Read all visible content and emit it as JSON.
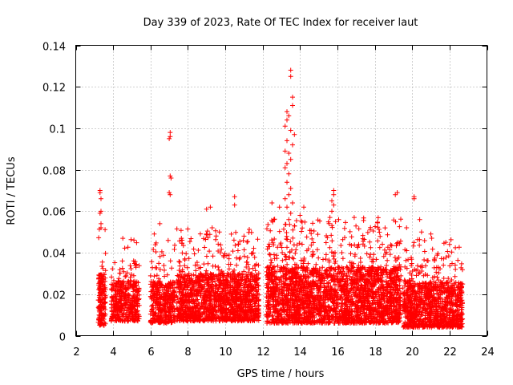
{
  "chart_data": {
    "type": "scatter",
    "title": "Day 339 of 2023, Rate Of TEC Index for receiver laut",
    "xlabel": "GPS time / hours",
    "ylabel": "ROTI / TECUs",
    "xlim": [
      2,
      24
    ],
    "ylim": [
      0,
      0.14
    ],
    "x_ticks": [
      2,
      4,
      6,
      8,
      10,
      12,
      14,
      16,
      18,
      20,
      22,
      24
    ],
    "x_tick_labels": [
      "2",
      "4",
      "6",
      "8",
      "10",
      "12",
      "14",
      "16",
      "18",
      "20",
      "22",
      "24"
    ],
    "y_ticks": [
      0,
      0.02,
      0.04,
      0.06,
      0.08,
      0.1,
      0.12,
      0.14
    ],
    "y_tick_labels": [
      "0",
      "0.02",
      "0.04",
      "0.06",
      "0.08",
      "0.1",
      "0.12",
      "0.14"
    ],
    "grid": true,
    "marker": "+",
    "series_color": "#ff0000",
    "clusters": [
      {
        "x_range": [
          3.2,
          3.6
        ],
        "base": [
          0.005,
          0.04
        ],
        "n": 160
      },
      {
        "x_range": [
          3.9,
          5.4
        ],
        "base": [
          0.007,
          0.035
        ],
        "n": 420
      },
      {
        "x_range": [
          6.0,
          7.3
        ],
        "base": [
          0.006,
          0.035
        ],
        "n": 380
      },
      {
        "x_range": [
          7.4,
          11.8
        ],
        "base": [
          0.007,
          0.04
        ],
        "n": 1500
      },
      {
        "x_range": [
          12.2,
          19.4
        ],
        "base": [
          0.006,
          0.045
        ],
        "n": 2600
      },
      {
        "x_range": [
          19.5,
          22.7
        ],
        "base": [
          0.004,
          0.035
        ],
        "n": 1100
      }
    ],
    "spikes": [
      {
        "x": 3.3,
        "y": 0.07
      },
      {
        "x": 3.3,
        "y": 0.069
      },
      {
        "x": 3.35,
        "y": 0.066
      },
      {
        "x": 3.35,
        "y": 0.06
      },
      {
        "x": 3.3,
        "y": 0.059
      },
      {
        "x": 3.35,
        "y": 0.054
      },
      {
        "x": 3.35,
        "y": 0.052
      },
      {
        "x": 7.05,
        "y": 0.098
      },
      {
        "x": 7.05,
        "y": 0.096
      },
      {
        "x": 7.0,
        "y": 0.095
      },
      {
        "x": 7.05,
        "y": 0.077
      },
      {
        "x": 7.1,
        "y": 0.076
      },
      {
        "x": 7.0,
        "y": 0.069
      },
      {
        "x": 7.05,
        "y": 0.068
      },
      {
        "x": 9.2,
        "y": 0.062
      },
      {
        "x": 9.0,
        "y": 0.061
      },
      {
        "x": 10.5,
        "y": 0.067
      },
      {
        "x": 10.5,
        "y": 0.063
      },
      {
        "x": 13.5,
        "y": 0.128
      },
      {
        "x": 13.5,
        "y": 0.125
      },
      {
        "x": 13.6,
        "y": 0.115
      },
      {
        "x": 13.6,
        "y": 0.111
      },
      {
        "x": 13.3,
        "y": 0.108
      },
      {
        "x": 13.4,
        "y": 0.106
      },
      {
        "x": 13.3,
        "y": 0.104
      },
      {
        "x": 13.2,
        "y": 0.101
      },
      {
        "x": 13.5,
        "y": 0.099
      },
      {
        "x": 13.7,
        "y": 0.097
      },
      {
        "x": 13.3,
        "y": 0.094
      },
      {
        "x": 13.6,
        "y": 0.092
      },
      {
        "x": 13.2,
        "y": 0.089
      },
      {
        "x": 13.4,
        "y": 0.088
      },
      {
        "x": 13.5,
        "y": 0.085
      },
      {
        "x": 13.3,
        "y": 0.083
      },
      {
        "x": 13.2,
        "y": 0.081
      },
      {
        "x": 13.4,
        "y": 0.078
      },
      {
        "x": 13.3,
        "y": 0.074
      },
      {
        "x": 13.5,
        "y": 0.071
      },
      {
        "x": 13.4,
        "y": 0.068
      },
      {
        "x": 13.2,
        "y": 0.066
      },
      {
        "x": 13.6,
        "y": 0.064
      },
      {
        "x": 13.3,
        "y": 0.062
      },
      {
        "x": 13.5,
        "y": 0.059
      },
      {
        "x": 13.4,
        "y": 0.056
      },
      {
        "x": 13.7,
        "y": 0.053
      },
      {
        "x": 12.5,
        "y": 0.064
      },
      {
        "x": 12.6,
        "y": 0.056
      },
      {
        "x": 14.2,
        "y": 0.062
      },
      {
        "x": 14.0,
        "y": 0.058
      },
      {
        "x": 12.9,
        "y": 0.062
      },
      {
        "x": 15.8,
        "y": 0.07
      },
      {
        "x": 15.8,
        "y": 0.068
      },
      {
        "x": 15.7,
        "y": 0.065
      },
      {
        "x": 15.8,
        "y": 0.063
      },
      {
        "x": 15.7,
        "y": 0.06
      },
      {
        "x": 15.6,
        "y": 0.057
      },
      {
        "x": 15.9,
        "y": 0.055
      },
      {
        "x": 16.9,
        "y": 0.057
      },
      {
        "x": 19.2,
        "y": 0.069
      },
      {
        "x": 19.1,
        "y": 0.068
      },
      {
        "x": 20.1,
        "y": 0.067
      },
      {
        "x": 20.1,
        "y": 0.066
      },
      {
        "x": 20.4,
        "y": 0.056
      },
      {
        "x": 19.7,
        "y": 0.052
      },
      {
        "x": 20.5,
        "y": 0.05
      },
      {
        "x": 21.0,
        "y": 0.049
      },
      {
        "x": 22.0,
        "y": 0.044
      },
      {
        "x": 6.5,
        "y": 0.054
      },
      {
        "x": 6.2,
        "y": 0.049
      },
      {
        "x": 9.3,
        "y": 0.052
      },
      {
        "x": 11.0,
        "y": 0.048
      }
    ]
  }
}
